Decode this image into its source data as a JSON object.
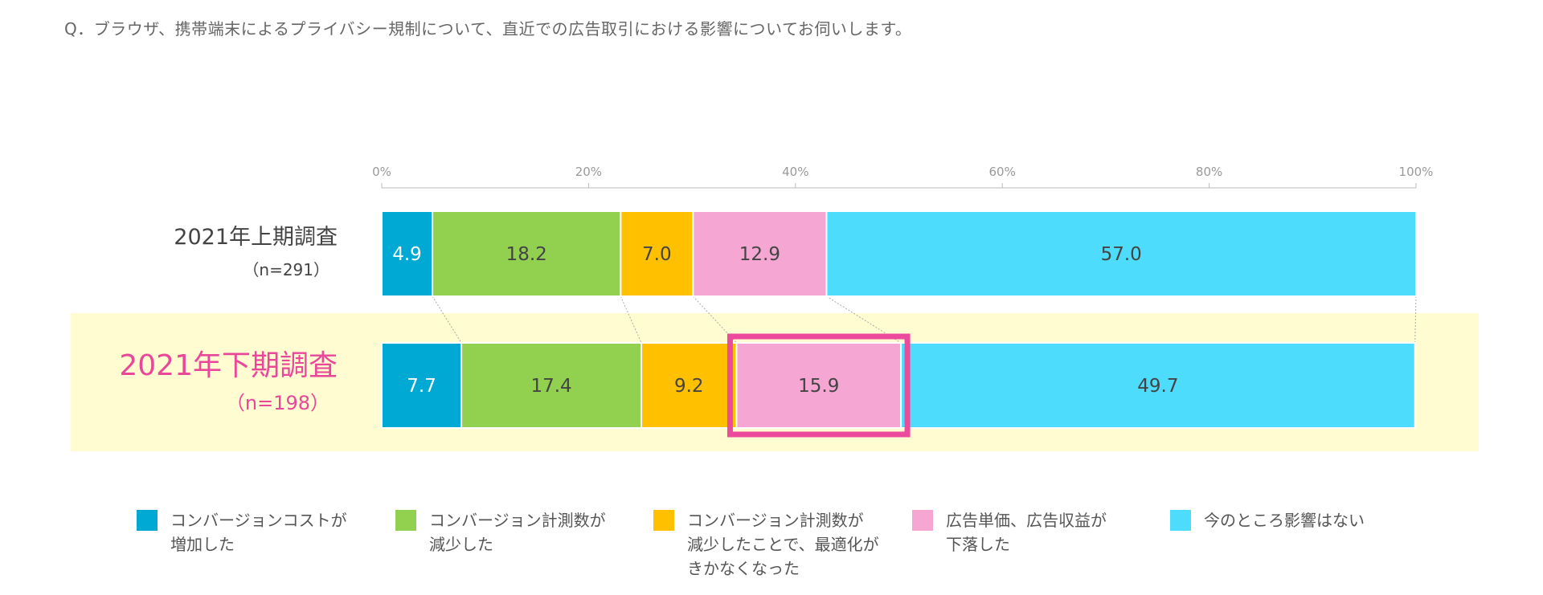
{
  "question": "Q．ブラウザ、携帯端末によるプライバシー規制について、直近での広告取引における影響についてお伺いします。",
  "colors": {
    "highlight_band": "#fefcd0",
    "highlight_border": "#ec4a9c",
    "highlight_title": "#e8479a",
    "axis": "#bbbbbb",
    "tick_label": "#999999"
  },
  "chart_data": {
    "type": "bar",
    "orientation": "horizontal",
    "stacked": true,
    "xlim": [
      0,
      100
    ],
    "ticks": [
      "0%",
      "20%",
      "40%",
      "60%",
      "80%",
      "100%"
    ],
    "tick_values": [
      0,
      20,
      40,
      60,
      80,
      100
    ],
    "rows": [
      {
        "label": "2021年上期調査",
        "n": "（n=291）",
        "highlight": false
      },
      {
        "label": "2021年下期調査",
        "n": "（n=198）",
        "highlight": true
      }
    ],
    "series": [
      {
        "name": "コンバージョンコストが\n増加した",
        "color": "#00a9d4",
        "text_color": "#ffffff",
        "values": [
          4.9,
          7.7
        ]
      },
      {
        "name": "コンバージョン計測数が\n減少した",
        "color": "#92d050",
        "text_color": "#444444",
        "values": [
          18.2,
          17.4
        ]
      },
      {
        "name": "コンバージョン計測数が\n減少したことで、最適化が\nきかなくなった",
        "color": "#ffc000",
        "text_color": "#444444",
        "values": [
          7.0,
          9.2
        ]
      },
      {
        "name": "広告単価、広告収益が\n下落した",
        "color": "#f5a6d3",
        "text_color": "#444444",
        "values": [
          12.9,
          15.9
        ]
      },
      {
        "name": "今のところ影響はない",
        "color": "#4ddcfc",
        "text_color": "#444444",
        "values": [
          57.0,
          49.7
        ]
      }
    ],
    "highlighted_series_index": 3,
    "legend_position": "bottom"
  }
}
